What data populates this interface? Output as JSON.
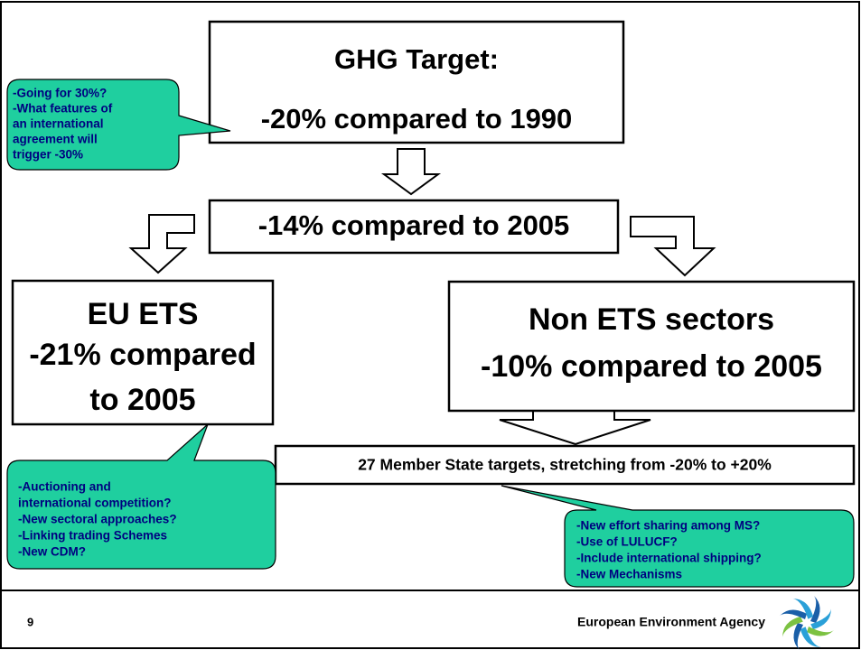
{
  "boxes": [
    {
      "lines": [
        "GHG Target:",
        "-20% compared to 1990"
      ]
    },
    {
      "lines": [
        "-14% compared to 2005"
      ]
    },
    {
      "lines": [
        "EU ETS",
        "-21% compared",
        "to 2005"
      ]
    },
    {
      "lines": [
        "Non ETS sectors",
        "-10% compared to 2005"
      ]
    },
    {
      "lines": [
        "27 Member State targets, stretching from -20% to +20%"
      ]
    }
  ],
  "callouts": [
    {
      "lines": [
        "-Going for 30%?",
        "-What features of",
        "an international",
        "agreement will",
        "trigger -30%"
      ]
    },
    {
      "lines": [
        "-Auctioning and",
        "international competition?",
        "-New sectoral approaches?",
        "-Linking trading Schemes",
        "-New CDM?"
      ]
    },
    {
      "lines": [
        "-New effort sharing among MS?",
        "-Use of LULUCF?",
        "-Include international shipping?",
        "-New Mechanisms"
      ]
    }
  ],
  "footer": {
    "page": "9",
    "agency": "European Environment Agency"
  }
}
